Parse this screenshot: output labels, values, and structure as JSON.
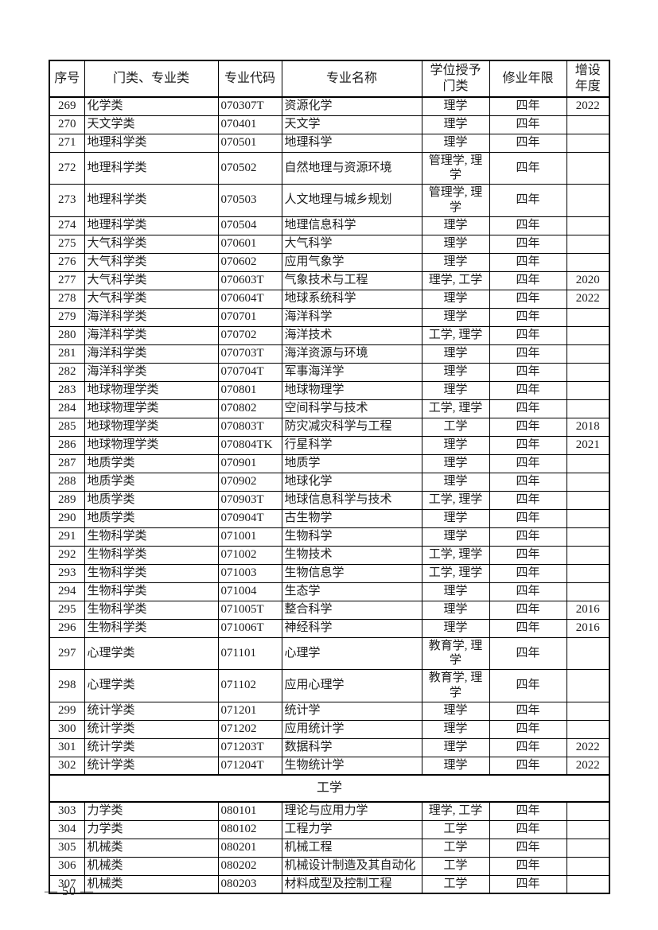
{
  "page": {
    "footer_page_number": "— 50 —"
  },
  "table": {
    "headers": [
      "序号",
      "门类、专业类",
      "专业代码",
      "专业名称",
      "学位授予\n门类",
      "修业年限",
      "增设\n年度"
    ],
    "rows": [
      {
        "no": "269",
        "category": "化学类",
        "code": "070307T",
        "name": "资源化学",
        "degree": "理学",
        "years": "四年",
        "added": "2022"
      },
      {
        "no": "270",
        "category": "天文学类",
        "code": "070401",
        "name": "天文学",
        "degree": "理学",
        "years": "四年",
        "added": ""
      },
      {
        "no": "271",
        "category": "地理科学类",
        "code": "070501",
        "name": "地理科学",
        "degree": "理学",
        "years": "四年",
        "added": ""
      },
      {
        "no": "272",
        "category": "地理科学类",
        "code": "070502",
        "name": "自然地理与资源环境",
        "degree": "管理学, 理学",
        "years": "四年",
        "added": ""
      },
      {
        "no": "273",
        "category": "地理科学类",
        "code": "070503",
        "name": "人文地理与城乡规划",
        "degree": "管理学, 理学",
        "years": "四年",
        "added": ""
      },
      {
        "no": "274",
        "category": "地理科学类",
        "code": "070504",
        "name": "地理信息科学",
        "degree": "理学",
        "years": "四年",
        "added": ""
      },
      {
        "no": "275",
        "category": "大气科学类",
        "code": "070601",
        "name": "大气科学",
        "degree": "理学",
        "years": "四年",
        "added": ""
      },
      {
        "no": "276",
        "category": "大气科学类",
        "code": "070602",
        "name": "应用气象学",
        "degree": "理学",
        "years": "四年",
        "added": ""
      },
      {
        "no": "277",
        "category": "大气科学类",
        "code": "070603T",
        "name": "气象技术与工程",
        "degree": "理学, 工学",
        "years": "四年",
        "added": "2020"
      },
      {
        "no": "278",
        "category": "大气科学类",
        "code": "070604T",
        "name": "地球系统科学",
        "degree": "理学",
        "years": "四年",
        "added": "2022"
      },
      {
        "no": "279",
        "category": "海洋科学类",
        "code": "070701",
        "name": "海洋科学",
        "degree": "理学",
        "years": "四年",
        "added": ""
      },
      {
        "no": "280",
        "category": "海洋科学类",
        "code": "070702",
        "name": "海洋技术",
        "degree": "工学, 理学",
        "years": "四年",
        "added": ""
      },
      {
        "no": "281",
        "category": "海洋科学类",
        "code": "070703T",
        "name": "海洋资源与环境",
        "degree": "理学",
        "years": "四年",
        "added": ""
      },
      {
        "no": "282",
        "category": "海洋科学类",
        "code": "070704T",
        "name": "军事海洋学",
        "degree": "理学",
        "years": "四年",
        "added": ""
      },
      {
        "no": "283",
        "category": "地球物理学类",
        "code": "070801",
        "name": "地球物理学",
        "degree": "理学",
        "years": "四年",
        "added": ""
      },
      {
        "no": "284",
        "category": "地球物理学类",
        "code": "070802",
        "name": "空间科学与技术",
        "degree": "工学, 理学",
        "years": "四年",
        "added": ""
      },
      {
        "no": "285",
        "category": "地球物理学类",
        "code": "070803T",
        "name": "防灾减灾科学与工程",
        "degree": "工学",
        "years": "四年",
        "added": "2018"
      },
      {
        "no": "286",
        "category": "地球物理学类",
        "code": "070804TK",
        "name": "行星科学",
        "degree": "理学",
        "years": "四年",
        "added": "2021"
      },
      {
        "no": "287",
        "category": "地质学类",
        "code": "070901",
        "name": "地质学",
        "degree": "理学",
        "years": "四年",
        "added": ""
      },
      {
        "no": "288",
        "category": "地质学类",
        "code": "070902",
        "name": "地球化学",
        "degree": "理学",
        "years": "四年",
        "added": ""
      },
      {
        "no": "289",
        "category": "地质学类",
        "code": "070903T",
        "name": "地球信息科学与技术",
        "degree": "工学, 理学",
        "years": "四年",
        "added": ""
      },
      {
        "no": "290",
        "category": "地质学类",
        "code": "070904T",
        "name": "古生物学",
        "degree": "理学",
        "years": "四年",
        "added": ""
      },
      {
        "no": "291",
        "category": "生物科学类",
        "code": "071001",
        "name": "生物科学",
        "degree": "理学",
        "years": "四年",
        "added": ""
      },
      {
        "no": "292",
        "category": "生物科学类",
        "code": "071002",
        "name": "生物技术",
        "degree": "工学, 理学",
        "years": "四年",
        "added": ""
      },
      {
        "no": "293",
        "category": "生物科学类",
        "code": "071003",
        "name": "生物信息学",
        "degree": "工学, 理学",
        "years": "四年",
        "added": ""
      },
      {
        "no": "294",
        "category": "生物科学类",
        "code": "071004",
        "name": "生态学",
        "degree": "理学",
        "years": "四年",
        "added": ""
      },
      {
        "no": "295",
        "category": "生物科学类",
        "code": "071005T",
        "name": "整合科学",
        "degree": "理学",
        "years": "四年",
        "added": "2016"
      },
      {
        "no": "296",
        "category": "生物科学类",
        "code": "071006T",
        "name": "神经科学",
        "degree": "理学",
        "years": "四年",
        "added": "2016"
      },
      {
        "no": "297",
        "category": "心理学类",
        "code": "071101",
        "name": "心理学",
        "degree": "教育学, 理学",
        "years": "四年",
        "added": ""
      },
      {
        "no": "298",
        "category": "心理学类",
        "code": "071102",
        "name": "应用心理学",
        "degree": "教育学, 理学",
        "years": "四年",
        "added": ""
      },
      {
        "no": "299",
        "category": "统计学类",
        "code": "071201",
        "name": "统计学",
        "degree": "理学",
        "years": "四年",
        "added": ""
      },
      {
        "no": "300",
        "category": "统计学类",
        "code": "071202",
        "name": "应用统计学",
        "degree": "理学",
        "years": "四年",
        "added": ""
      },
      {
        "no": "301",
        "category": "统计学类",
        "code": "071203T",
        "name": "数据科学",
        "degree": "理学",
        "years": "四年",
        "added": "2022"
      },
      {
        "no": "302",
        "category": "统计学类",
        "code": "071204T",
        "name": "生物统计学",
        "degree": "理学",
        "years": "四年",
        "added": "2022"
      },
      {
        "type": "section",
        "label": "工学"
      },
      {
        "no": "303",
        "category": "力学类",
        "code": "080101",
        "name": "理论与应用力学",
        "degree": "理学, 工学",
        "years": "四年",
        "added": ""
      },
      {
        "no": "304",
        "category": "力学类",
        "code": "080102",
        "name": "工程力学",
        "degree": "工学",
        "years": "四年",
        "added": ""
      },
      {
        "no": "305",
        "category": "机械类",
        "code": "080201",
        "name": "机械工程",
        "degree": "工学",
        "years": "四年",
        "added": ""
      },
      {
        "no": "306",
        "category": "机械类",
        "code": "080202",
        "name": "机械设计制造及其自动化",
        "degree": "工学",
        "years": "四年",
        "added": ""
      },
      {
        "no": "307",
        "category": "机械类",
        "code": "080203",
        "name": "材料成型及控制工程",
        "degree": "工学",
        "years": "四年",
        "added": ""
      }
    ]
  }
}
